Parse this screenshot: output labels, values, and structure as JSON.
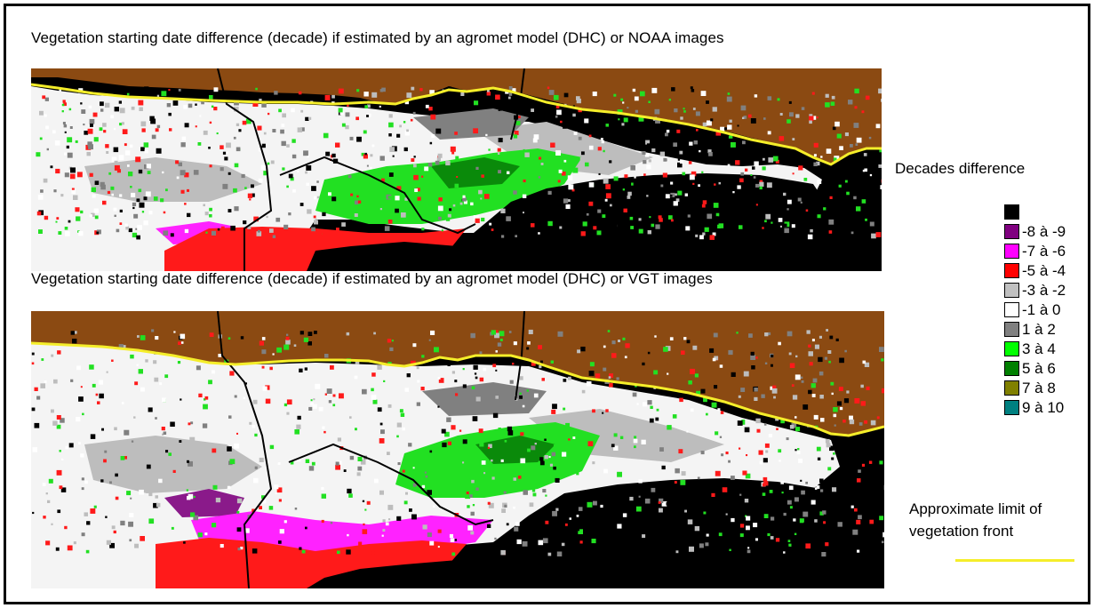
{
  "titles": {
    "top": "Vegetation starting date difference (decade) if estimated by an agromet model (DHC) or NOAA images",
    "bottom": "Vegetation starting date difference (decade) if estimated by an agromet model (DHC) or VGT images"
  },
  "legend": {
    "title": "Decades difference",
    "items": [
      {
        "label": "",
        "color": "#000000"
      },
      {
        "label": "-8 à -9",
        "color": "#800080"
      },
      {
        "label": "-7 à -6",
        "color": "#ff00ff"
      },
      {
        "label": "-5 à -4",
        "color": "#ff0000"
      },
      {
        "label": "-3 à -2",
        "color": "#c0c0c0"
      },
      {
        "label": "-1 à 0",
        "color": "#ffffff"
      },
      {
        "label": "1 à 2",
        "color": "#808080"
      },
      {
        "label": "3 à 4",
        "color": "#00ff00"
      },
      {
        "label": "5 à 6",
        "color": "#008000"
      },
      {
        "label": "7 à 8",
        "color": "#808000"
      },
      {
        "label": "9 à 10",
        "color": "#008080"
      }
    ]
  },
  "front_label": {
    "line1": "Approximate limit of",
    "line2": "vegetation front",
    "color": "#f5ee2a"
  },
  "map_colors": {
    "desert": "#8b4a12",
    "ocean": "#000000",
    "front": "#f5ee2a"
  }
}
